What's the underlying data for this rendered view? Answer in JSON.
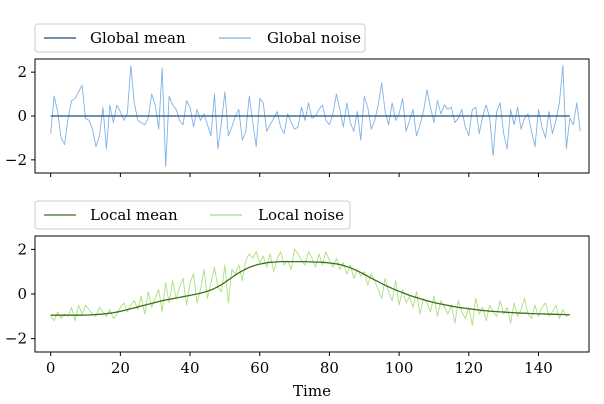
{
  "chart_data": [
    {
      "type": "line",
      "xlim": [
        -4.5,
        154.5
      ],
      "ylim": [
        -2.6,
        2.6
      ],
      "yticks": [
        -2,
        0,
        2
      ],
      "ytick_labels": [
        "−2",
        "0",
        "2"
      ],
      "xtick_labels": [],
      "legend": {
        "placement": "top-left",
        "entries": [
          "Global mean",
          "Global noise"
        ]
      },
      "grid": false,
      "series": [
        {
          "name": "Global mean",
          "color": "#1f4e79",
          "x_start": 0,
          "x_step": 1,
          "values": [
            0
          ],
          "constant": 0,
          "count": 150
        },
        {
          "name": "Global noise",
          "color": "#7fb2e5",
          "x_start": 0,
          "x_step": 1,
          "values": [
            -0.8,
            0.9,
            0.2,
            -1.0,
            -1.3,
            -0.1,
            0.7,
            0.8,
            1.1,
            1.4,
            -0.1,
            -0.2,
            -0.6,
            -1.4,
            -0.9,
            0.4,
            -1.5,
            0.5,
            -0.3,
            0.5,
            0.2,
            -0.2,
            0.1,
            2.3,
            0.6,
            -0.2,
            -0.3,
            -0.4,
            -0.1,
            1.0,
            0.5,
            -0.6,
            2.2,
            -2.3,
            0.9,
            0.5,
            0.3,
            -0.2,
            -0.4,
            0.7,
            0.4,
            -0.5,
            0.3,
            -0.2,
            0.1,
            -0.4,
            -0.9,
            1.0,
            -1.5,
            -0.3,
            1.1,
            -0.9,
            -0.5,
            0.0,
            0.3,
            -1.1,
            -0.7,
            0.9,
            -0.3,
            -1.4,
            0.8,
            0.6,
            -0.7,
            -0.4,
            -0.1,
            0.2,
            -0.5,
            -0.8,
            0.1,
            -0.3,
            -0.6,
            -0.5,
            0.4,
            -0.2,
            0.6,
            -0.1,
            0.0,
            0.3,
            0.5,
            -0.2,
            -0.4,
            0.1,
            1.0,
            0.3,
            -0.5,
            0.6,
            -0.3,
            -0.7,
            0.2,
            -1.1,
            0.9,
            0.4,
            -0.6,
            -0.2,
            0.5,
            1.5,
            0.2,
            -0.4,
            0.6,
            -0.2,
            0.1,
            0.8,
            -0.7,
            -0.2,
            0.3,
            -0.9,
            -0.4,
            0.2,
            1.2,
            0.4,
            -0.3,
            0.7,
            0.1,
            0.5,
            0.3,
            0.4,
            -0.3,
            -0.1,
            0.3,
            -0.5,
            -0.9,
            0.3,
            0.4,
            -0.8,
            0.0,
            0.5,
            -0.1,
            -1.8,
            0.2,
            0.6,
            -0.8,
            -1.5,
            0.3,
            -0.4,
            0.4,
            -0.6,
            -0.1,
            0.1,
            -0.7,
            -1.4,
            0.3,
            -0.5,
            -1.0,
            0.2,
            -0.8,
            -0.2,
            0.6,
            2.3,
            -1.5,
            -0.1,
            -0.4,
            0.6,
            -0.7
          ]
        }
      ]
    },
    {
      "type": "line",
      "xlim": [
        -4.5,
        154.5
      ],
      "ylim": [
        -2.6,
        2.6
      ],
      "yticks": [
        -2,
        0,
        2
      ],
      "ytick_labels": [
        "−2",
        "0",
        "2"
      ],
      "xticks": [
        0,
        20,
        40,
        60,
        80,
        100,
        120,
        140
      ],
      "xtick_labels": [
        "0",
        "20",
        "40",
        "60",
        "80",
        "100",
        "120",
        "140"
      ],
      "xlabel": "Time",
      "legend": {
        "placement": "top-left",
        "entries": [
          "Local mean",
          "Local noise"
        ]
      },
      "grid": false,
      "series": [
        {
          "name": "Local mean",
          "color": "#3f6f1a",
          "x_start": 0,
          "x_step": 1,
          "values": [
            -0.95,
            -0.95,
            -0.95,
            -0.95,
            -0.95,
            -0.95,
            -0.95,
            -0.95,
            -0.95,
            -0.95,
            -0.94,
            -0.94,
            -0.93,
            -0.92,
            -0.91,
            -0.9,
            -0.88,
            -0.86,
            -0.84,
            -0.81,
            -0.78,
            -0.74,
            -0.7,
            -0.66,
            -0.62,
            -0.58,
            -0.54,
            -0.5,
            -0.46,
            -0.42,
            -0.38,
            -0.34,
            -0.3,
            -0.27,
            -0.24,
            -0.21,
            -0.18,
            -0.15,
            -0.12,
            -0.09,
            -0.06,
            -0.03,
            0.0,
            0.04,
            0.08,
            0.13,
            0.18,
            0.25,
            0.33,
            0.42,
            0.52,
            0.63,
            0.74,
            0.85,
            0.95,
            1.04,
            1.12,
            1.19,
            1.25,
            1.3,
            1.34,
            1.37,
            1.4,
            1.42,
            1.43,
            1.44,
            1.45,
            1.45,
            1.45,
            1.45,
            1.45,
            1.45,
            1.45,
            1.45,
            1.44,
            1.44,
            1.43,
            1.43,
            1.42,
            1.41,
            1.39,
            1.37,
            1.35,
            1.32,
            1.28,
            1.23,
            1.18,
            1.11,
            1.04,
            0.96,
            0.88,
            0.8,
            0.71,
            0.63,
            0.55,
            0.47,
            0.39,
            0.32,
            0.25,
            0.18,
            0.12,
            0.06,
            0.0,
            -0.06,
            -0.11,
            -0.16,
            -0.21,
            -0.26,
            -0.3,
            -0.34,
            -0.38,
            -0.42,
            -0.45,
            -0.48,
            -0.51,
            -0.54,
            -0.57,
            -0.6,
            -0.62,
            -0.64,
            -0.66,
            -0.68,
            -0.7,
            -0.72,
            -0.74,
            -0.75,
            -0.77,
            -0.78,
            -0.79,
            -0.8,
            -0.81,
            -0.82,
            -0.83,
            -0.84,
            -0.85,
            -0.86,
            -0.86,
            -0.87,
            -0.88,
            -0.88,
            -0.89,
            -0.89,
            -0.9,
            -0.9,
            -0.91,
            -0.91,
            -0.92,
            -0.92,
            -0.93,
            -0.93
          ]
        },
        {
          "name": "Local noise",
          "color": "#a8e07f",
          "x_start": 0,
          "x_step": 1,
          "values": [
            -1.0,
            -1.2,
            -0.8,
            -1.1,
            -0.9,
            -1.0,
            -0.6,
            -1.2,
            -0.5,
            -0.9,
            -0.5,
            -0.7,
            -0.9,
            -1.0,
            -0.6,
            -0.8,
            -1.0,
            -0.7,
            -1.1,
            -0.9,
            -0.6,
            -0.4,
            -0.8,
            -0.5,
            -0.3,
            -0.7,
            -0.1,
            -0.9,
            0.1,
            -0.6,
            -0.2,
            0.2,
            -0.8,
            0.5,
            -0.4,
            0.6,
            -0.2,
            0.3,
            0.7,
            -0.5,
            0.5,
            0.9,
            -0.4,
            0.2,
            1.1,
            -0.2,
            0.5,
            1.2,
            0.3,
            0.1,
            1.3,
            -0.4,
            1.1,
            0.9,
            1.3,
            0.6,
            1.5,
            1.8,
            1.6,
            1.9,
            1.4,
            1.7,
            1.2,
            1.8,
            1.0,
            1.6,
            1.9,
            1.3,
            1.5,
            1.1,
            2.0,
            1.8,
            1.5,
            1.3,
            1.9,
            1.6,
            1.2,
            1.8,
            1.3,
            1.9,
            1.5,
            1.2,
            1.6,
            1.1,
            1.4,
            0.9,
            1.3,
            0.7,
            1.1,
            0.8,
            1.0,
            0.4,
            0.9,
            0.6,
            0.2,
            -0.2,
            0.7,
            0.1,
            -0.3,
            0.6,
            -0.5,
            0.2,
            -0.4,
            -0.1,
            -0.6,
            0.1,
            -0.9,
            -0.2,
            -0.4,
            -0.8,
            -0.1,
            -1.0,
            -0.3,
            -0.6,
            -0.9,
            -0.5,
            -1.3,
            -0.3,
            -0.8,
            -1.1,
            -0.6,
            -1.4,
            -0.2,
            -0.9,
            -0.6,
            -1.2,
            -0.5,
            -0.8,
            -1.0,
            -0.3,
            -0.9,
            -0.6,
            -1.3,
            -0.4,
            -1.0,
            -0.7,
            -0.2,
            -0.9,
            -1.1,
            -0.5,
            -1.0,
            -0.6,
            -0.4,
            -1.0,
            -0.8,
            -0.5,
            -1.1,
            -0.7,
            -1.0,
            -0.9
          ]
        }
      ]
    }
  ]
}
